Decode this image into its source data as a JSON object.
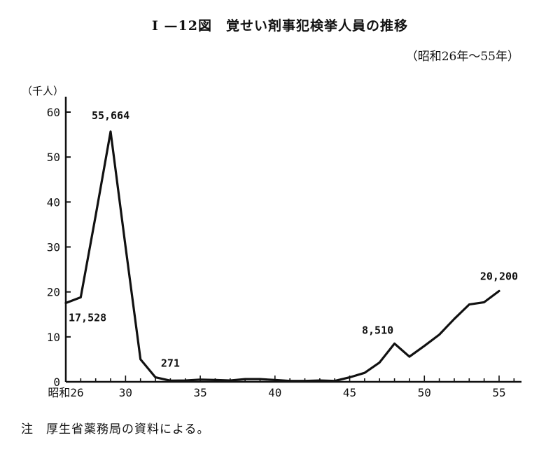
{
  "title": "I —12図　覚せい剤事犯検挙人員の推移",
  "subtitle": "（昭和26年～55年）",
  "note_prefix": "注",
  "note_text": "厚生省薬務局の資料による。",
  "chart_data": {
    "type": "line",
    "title": "I —12図　覚せい剤事犯検挙人員の推移",
    "subtitle": "（昭和26年～55年）",
    "ylabel": "（千人）",
    "xlabel": "",
    "xlim": [
      26,
      56.5
    ],
    "ylim": [
      0,
      60
    ],
    "y_ticks": [
      0,
      10,
      20,
      30,
      40,
      50,
      60
    ],
    "x_ticks": [
      {
        "value": 26,
        "label": "昭和26"
      },
      {
        "value": 30,
        "label": "30"
      },
      {
        "value": 35,
        "label": "35"
      },
      {
        "value": 40,
        "label": "40"
      },
      {
        "value": 45,
        "label": "45"
      },
      {
        "value": 50,
        "label": "50"
      },
      {
        "value": 55,
        "label": "55"
      }
    ],
    "grid": false,
    "series": [
      {
        "x": [
          26,
          27,
          28,
          29,
          30,
          31,
          32,
          33,
          34,
          35,
          36,
          37,
          38,
          39,
          40,
          41,
          42,
          43,
          44,
          45,
          46,
          47,
          48,
          49,
          50,
          51,
          52,
          53,
          54,
          55
        ],
        "values": [
          17.528,
          18.8,
          37.0,
          55.664,
          30.0,
          5.0,
          1.0,
          0.271,
          0.3,
          0.5,
          0.4,
          0.3,
          0.6,
          0.6,
          0.4,
          0.2,
          0.2,
          0.3,
          0.2,
          1.0,
          2.0,
          4.3,
          8.51,
          5.6,
          8.0,
          10.5,
          14.0,
          17.2,
          17.7,
          20.2
        ]
      }
    ],
    "annotations": [
      {
        "x": 29,
        "y": 55.664,
        "text": "55,664",
        "position": "above"
      },
      {
        "x": 26,
        "y": 17.528,
        "text": "17,528",
        "position": "below-right"
      },
      {
        "x": 33,
        "y": 0.271,
        "text": "271",
        "position": "above"
      },
      {
        "x": 48,
        "y": 8.51,
        "text": "8,510",
        "position": "above-left"
      },
      {
        "x": 55,
        "y": 20.2,
        "text": "20,200",
        "position": "above"
      }
    ]
  }
}
